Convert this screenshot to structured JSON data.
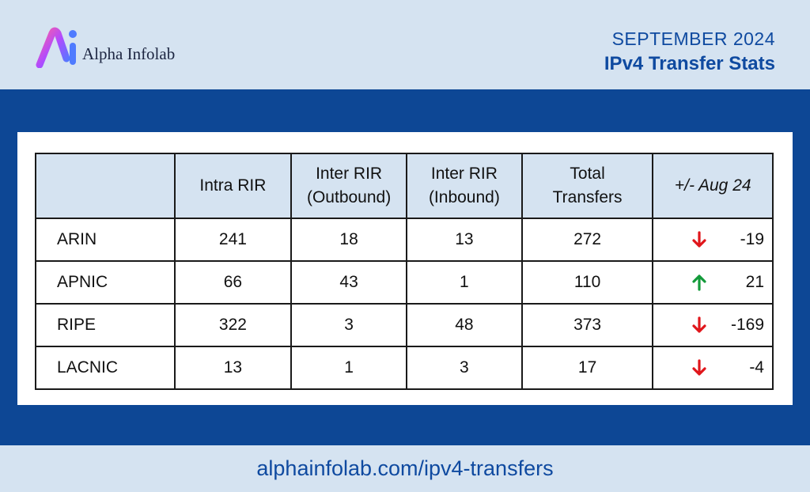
{
  "brand": {
    "name": "Alpha Infolab",
    "logo_icon": "ai-logo-icon"
  },
  "title": {
    "month": "SEPTEMBER 2024",
    "main": "IPv4 Transfer Stats"
  },
  "table": {
    "headers": {
      "rir": "",
      "intra": "Intra RIR",
      "outbound_1": "Inter RIR",
      "outbound_2": "(Outbound)",
      "inbound_1": "Inter RIR",
      "inbound_2": "(Inbound)",
      "total_1": "Total",
      "total_2": "Transfers",
      "delta": "+/- Aug 24"
    },
    "rows": [
      {
        "rir": "ARIN",
        "intra": "241",
        "outbound": "18",
        "inbound": "13",
        "total": "272",
        "delta": "-19",
        "trend": "down"
      },
      {
        "rir": "APNIC",
        "intra": "66",
        "outbound": "43",
        "inbound": "1",
        "total": "110",
        "delta": "21",
        "trend": "up"
      },
      {
        "rir": "RIPE",
        "intra": "322",
        "outbound": "3",
        "inbound": "48",
        "total": "373",
        "delta": "-169",
        "trend": "down"
      },
      {
        "rir": "LACNIC",
        "intra": "13",
        "outbound": "1",
        "inbound": "3",
        "total": "17",
        "delta": "-4",
        "trend": "down"
      }
    ]
  },
  "colors": {
    "up": "#139a3a",
    "down": "#e0161b",
    "accent": "#0f4aa0",
    "band": "#0d4795"
  },
  "footer": {
    "url": "alphainfolab.com/ipv4-transfers"
  }
}
